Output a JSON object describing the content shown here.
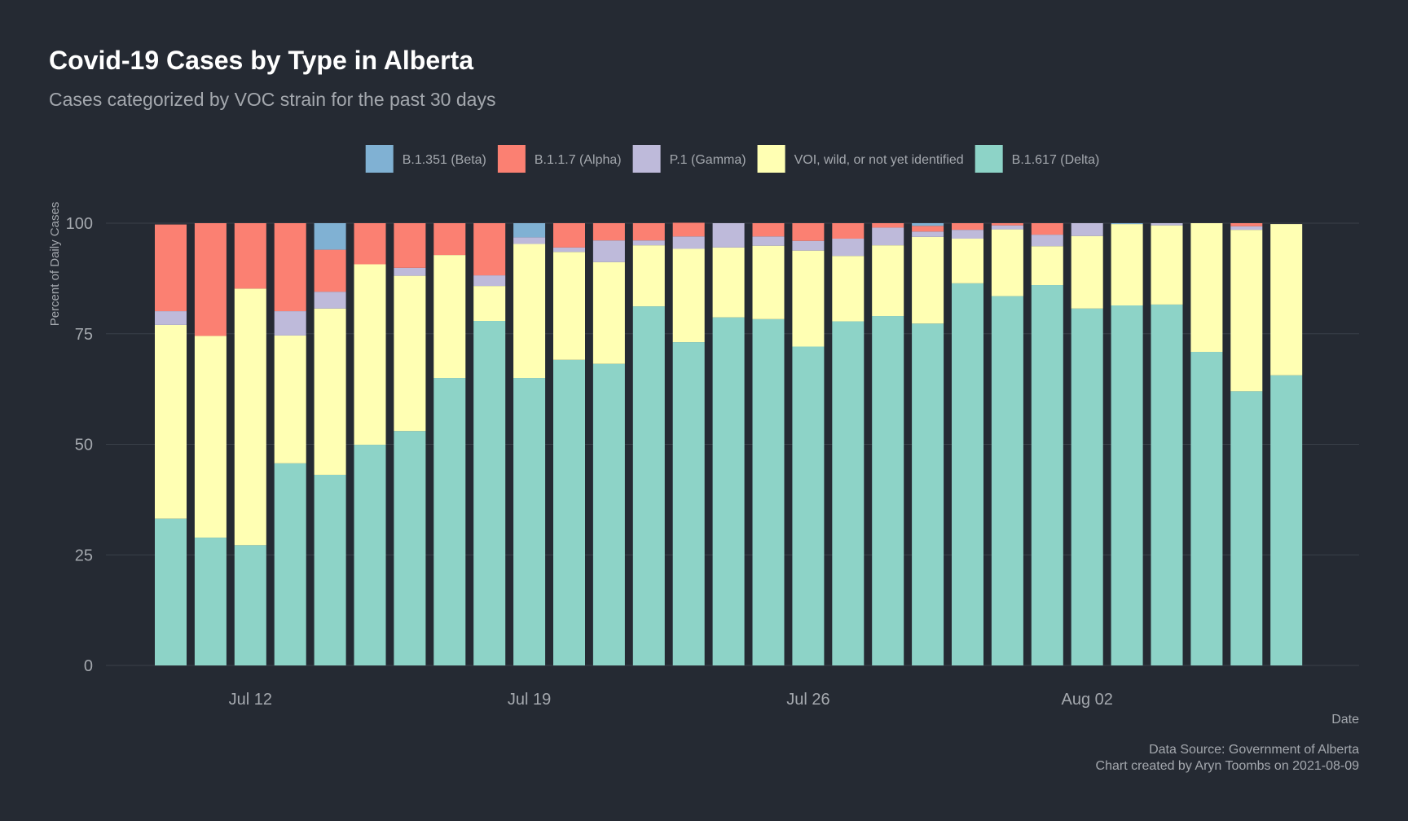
{
  "chart_data": {
    "type": "bar",
    "stacked": true,
    "title": "Covid-19 Cases by Type in Alberta",
    "subtitle": "Cases categorized by VOC strain for the past 30 days",
    "xlabel": "Date",
    "ylabel": "Percent of Daily Cases",
    "ylim": [
      0,
      100
    ],
    "y_ticks": [
      0,
      25,
      50,
      75,
      100
    ],
    "grid": true,
    "legend_position": "top",
    "x_tick_labels": [
      "Jul 12",
      "Jul 19",
      "Jul 26",
      "Aug 02"
    ],
    "x_tick_dates": [
      "2021-07-12",
      "2021-07-19",
      "2021-07-26",
      "2021-08-02"
    ],
    "categories": [
      "2021-07-10",
      "2021-07-11",
      "2021-07-12",
      "2021-07-13",
      "2021-07-14",
      "2021-07-15",
      "2021-07-16",
      "2021-07-17",
      "2021-07-18",
      "2021-07-19",
      "2021-07-20",
      "2021-07-21",
      "2021-07-22",
      "2021-07-23",
      "2021-07-24",
      "2021-07-25",
      "2021-07-26",
      "2021-07-27",
      "2021-07-28",
      "2021-07-29",
      "2021-07-30",
      "2021-07-31",
      "2021-08-01",
      "2021-08-02",
      "2021-08-03",
      "2021-08-04",
      "2021-08-05",
      "2021-08-06",
      "2021-08-07",
      "2021-08-08"
    ],
    "legend_order": [
      "B.1.351 (Beta)",
      "B.1.1.7 (Alpha)",
      "P.1 (Gamma)",
      "VOI, wild, or not yet identified",
      "B.1.617 (Delta)"
    ],
    "series": [
      {
        "name": "B.1.617 (Delta)",
        "color": "#8dd3c7",
        "values": [
          33.2,
          28.9,
          27.2,
          45.7,
          43.1,
          49.9,
          53.0,
          65.0,
          77.9,
          65.0,
          69.1,
          68.2,
          81.2,
          73.1,
          78.7,
          78.3,
          72.1,
          77.8,
          79.0,
          77.3,
          86.4,
          83.5,
          86.0,
          80.7,
          81.4,
          81.6,
          70.9,
          62.0,
          65.6,
          0
        ]
      },
      {
        "name": "VOI, wild, or not yet identified",
        "color": "#ffffb3",
        "values": [
          43.8,
          45.6,
          58.0,
          28.9,
          37.6,
          40.8,
          35.1,
          27.8,
          7.9,
          30.3,
          24.4,
          23.0,
          13.8,
          21.1,
          15.8,
          16.6,
          21.7,
          14.8,
          16.0,
          19.6,
          10.1,
          15.1,
          8.8,
          16.4,
          18.4,
          17.9,
          29.1,
          36.5,
          34.2,
          0
        ]
      },
      {
        "name": "P.1 (Gamma)",
        "color": "#bebada",
        "values": [
          3.1,
          0,
          0,
          5.5,
          3.8,
          0,
          1.8,
          0,
          2.4,
          1.5,
          1.0,
          4.9,
          1.1,
          2.8,
          5.5,
          2.1,
          2.2,
          3.9,
          4.0,
          1.2,
          2.0,
          0.9,
          2.6,
          2.9,
          0,
          0.5,
          0,
          0.8,
          0,
          0
        ]
      },
      {
        "name": "B.1.1.7 (Alpha)",
        "color": "#fb8072",
        "values": [
          19.6,
          25.5,
          14.8,
          19.9,
          9.5,
          9.3,
          10.1,
          7.2,
          11.8,
          0,
          5.5,
          3.9,
          3.9,
          3.1,
          0,
          3.0,
          4.0,
          3.5,
          1.0,
          1.3,
          1.5,
          0.5,
          2.6,
          0,
          0,
          0,
          0,
          0.7,
          0,
          0
        ]
      },
      {
        "name": "B.1.351 (Beta)",
        "color": "#80b1d3",
        "values": [
          0,
          0,
          0,
          0,
          6.0,
          0,
          0,
          0,
          0,
          3.2,
          0,
          0,
          0,
          0,
          0,
          0,
          0,
          0,
          0,
          0.6,
          0,
          0,
          0,
          0,
          0.2,
          0,
          0,
          0,
          0,
          0
        ]
      }
    ],
    "caption": [
      "Data Source: Government of Alberta",
      "Chart created by Aryn Toombs on 2021-08-09"
    ]
  }
}
